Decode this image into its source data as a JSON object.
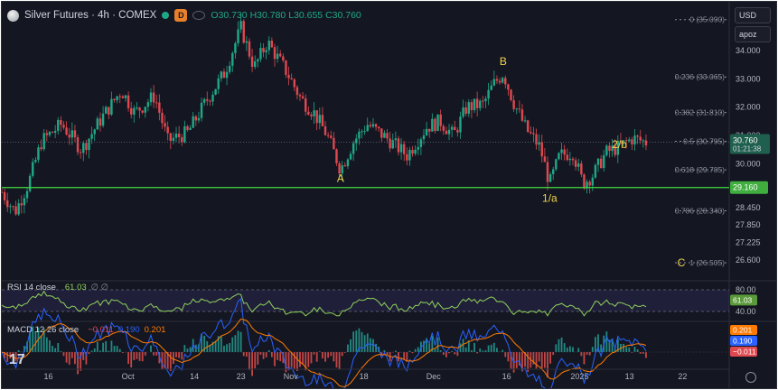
{
  "header": {
    "symbol": "Silver Futures · 4h · COMEX",
    "d_badge": "D",
    "open": "O30.730",
    "high": "H30.780",
    "low": "L30.655",
    "close": "C30.760"
  },
  "controls": {
    "currency": "USD",
    "scale": "apoz"
  },
  "rsi_label": {
    "name": "RSI 14 close",
    "value": "61.03",
    "extra": "∅ ∅"
  },
  "macd_label": {
    "name": "MACD 12 26 close",
    "v1": "−0.011",
    "v2": "0.190",
    "v3": "0.201"
  },
  "tv_logo": "17",
  "colors": {
    "background": "#141722",
    "bull": "#1fa887",
    "bear": "#e0484f",
    "support_line": "#3fdc3f",
    "wave_labels": "#f2d24a",
    "rsi": "#8fd15a",
    "macd": "#2962ff",
    "signal": "#ff7a00"
  },
  "chart_data": [
    {
      "type": "candlestick",
      "title": "Silver Futures · 4h · COMEX",
      "y_axis_ticks": [
        "34.000",
        "33.000",
        "32.000",
        "31.000",
        "30.000",
        "29.160",
        "28.450",
        "27.850",
        "27.225",
        "26.600"
      ],
      "ylim": [
        25.9,
        35.4
      ],
      "x_axis_ticks": [
        "16",
        "Oct",
        "14",
        "23",
        "Nov",
        "18",
        "Dec",
        "16",
        "2025",
        "13",
        "22"
      ],
      "price_close_points": [
        [
          0,
          29.0
        ],
        [
          0.02,
          28.3
        ],
        [
          0.04,
          29.3
        ],
        [
          0.06,
          30.8
        ],
        [
          0.09,
          31.4
        ],
        [
          0.12,
          30.5
        ],
        [
          0.15,
          31.6
        ],
        [
          0.18,
          32.6
        ],
        [
          0.2,
          31.8
        ],
        [
          0.23,
          32.4
        ],
        [
          0.25,
          30.8
        ],
        [
          0.28,
          31.1
        ],
        [
          0.31,
          32.3
        ],
        [
          0.335,
          33.2
        ],
        [
          0.36,
          34.8
        ],
        [
          0.38,
          33.4
        ],
        [
          0.4,
          34.3
        ],
        [
          0.43,
          33.2
        ],
        [
          0.45,
          32.3
        ],
        [
          0.47,
          31.8
        ],
        [
          0.49,
          31.0
        ],
        [
          0.51,
          29.8
        ],
        [
          0.53,
          30.8
        ],
        [
          0.55,
          31.4
        ],
        [
          0.58,
          30.9
        ],
        [
          0.61,
          30.3
        ],
        [
          0.64,
          31.3
        ],
        [
          0.66,
          31.5
        ],
        [
          0.68,
          31.0
        ],
        [
          0.7,
          32.0
        ],
        [
          0.725,
          32.1
        ],
        [
          0.74,
          32.8
        ],
        [
          0.755,
          33.2
        ],
        [
          0.77,
          32.2
        ],
        [
          0.79,
          31.2
        ],
        [
          0.81,
          30.6
        ],
        [
          0.825,
          29.3
        ],
        [
          0.84,
          30.3
        ],
        [
          0.86,
          30.4
        ],
        [
          0.875,
          29.3
        ],
        [
          0.89,
          29.6
        ],
        [
          0.91,
          30.4
        ],
        [
          0.93,
          30.6
        ],
        [
          0.95,
          30.9
        ],
        [
          0.97,
          30.76
        ]
      ],
      "horizontal_levels": [
        {
          "label": "0 (35.090)",
          "value": 35.09
        },
        {
          "label": "0.236 (33.065)",
          "value": 33.065
        },
        {
          "label": "0.382 (31.810)",
          "value": 31.81
        },
        {
          "label": "0.5 (30.795)",
          "value": 30.795
        },
        {
          "label": "0.618 (29.785)",
          "value": 29.785
        },
        {
          "label": "0.786 (28.340)",
          "value": 28.34
        },
        {
          "label": "1 (26.505)",
          "value": 26.505
        }
      ],
      "support_line": {
        "value": 29.16,
        "label": "29.160"
      },
      "current_price": {
        "value": 30.76,
        "label": "30.760",
        "countdown": "01:21:38"
      },
      "wave_labels": [
        {
          "text": "A",
          "x": 0.51,
          "y": 29.8
        },
        {
          "text": "B",
          "x": 0.755,
          "y": 33.3
        },
        {
          "text": "1/a",
          "x": 0.825,
          "y": 29.1
        },
        {
          "text": "2/b",
          "x": 0.93,
          "y": 31.0
        },
        {
          "text": "C",
          "x": 0.99,
          "y": 26.5
        }
      ]
    },
    {
      "type": "line",
      "title": "RSI 14 close",
      "y_axis_ticks": [
        "80.00",
        "40.00"
      ],
      "ylim": [
        25,
        95
      ],
      "current": {
        "value": 61.03,
        "label": "61.03"
      },
      "band": [
        40,
        80
      ]
    },
    {
      "type": "bar",
      "title": "MACD 12 26 close",
      "series": [
        {
          "name": "MACD",
          "current": 0.19,
          "label": "0.190"
        },
        {
          "name": "Signal",
          "current": 0.201,
          "label": "0.201"
        },
        {
          "name": "Histogram",
          "current": -0.011,
          "label": "−0.011"
        }
      ]
    }
  ]
}
